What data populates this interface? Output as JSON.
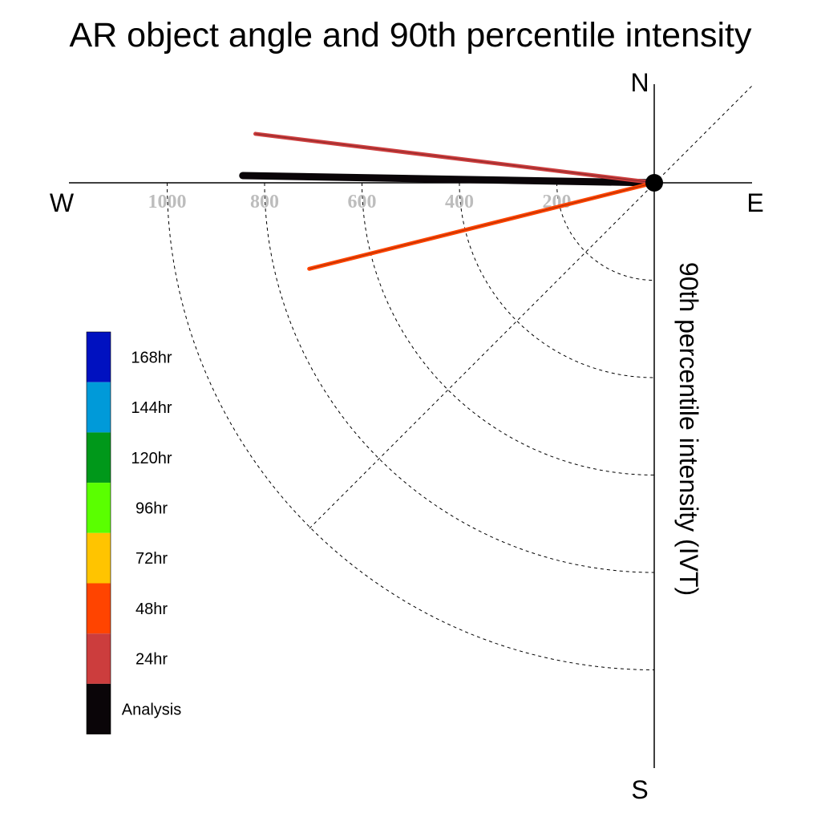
{
  "chart_data": {
    "type": "polar-vector",
    "title": "AR object angle and 90th percentile intensity",
    "radial_label": "90th percentile intensity (IVT)",
    "directions": {
      "north": "N",
      "south": "S",
      "east": "E",
      "west": "W"
    },
    "radial_ticks": [
      200,
      400,
      600,
      800,
      1000
    ],
    "radial_max": 1200,
    "legend_title": "",
    "legend": [
      {
        "label": "168hr",
        "color": "#0011c0"
      },
      {
        "label": "144hr",
        "color": "#009ad9"
      },
      {
        "label": "120hr",
        "color": "#00981a"
      },
      {
        "label": "96hr",
        "color": "#5aff00"
      },
      {
        "label": "72hr",
        "color": "#ffc400"
      },
      {
        "label": "48hr",
        "color": "#ff4400"
      },
      {
        "label": "24hr",
        "color": "#cc3d3d"
      },
      {
        "label": "Analysis",
        "color": "#0a0508"
      }
    ],
    "series": [
      {
        "name": "Analysis",
        "color": "#0a0508",
        "direction_deg": 271,
        "intensity": 845
      },
      {
        "name": "24hr",
        "color": "#cc3d3d",
        "direction_deg": 277,
        "intensity": 825
      },
      {
        "name": "48hr",
        "color": "#ff4400",
        "direction_deg": 256,
        "intensity": 730
      }
    ]
  }
}
